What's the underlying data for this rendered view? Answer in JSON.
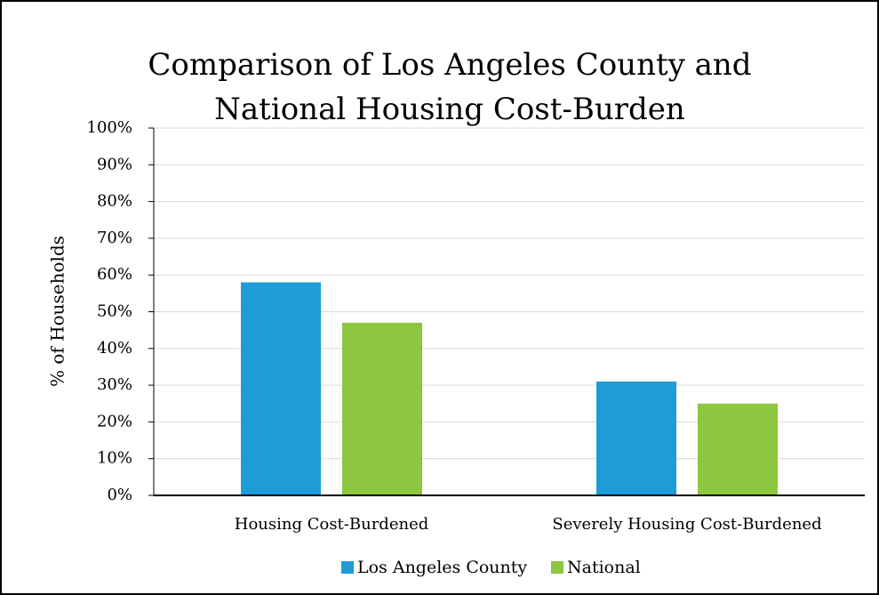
{
  "chart_data": {
    "type": "bar",
    "title": "Comparison of Los Angeles County and National Housing Cost-Burden",
    "y_label": "% of Households",
    "categories": [
      "Housing Cost-Burdened",
      "Severely Housing Cost-Burdened"
    ],
    "series": [
      {
        "name": "Los Angeles County",
        "color": "#1f9bd7",
        "values": [
          58,
          31
        ]
      },
      {
        "name": "National",
        "color": "#8dc63f",
        "values": [
          47,
          25
        ]
      }
    ],
    "ylim": [
      0,
      100
    ],
    "yticks": [
      {
        "value": 0,
        "label": "0%"
      },
      {
        "value": 10,
        "label": "10%"
      },
      {
        "value": 20,
        "label": "20%"
      },
      {
        "value": 30,
        "label": "30%"
      },
      {
        "value": 40,
        "label": "40%"
      },
      {
        "value": 50,
        "label": "50%"
      },
      {
        "value": 60,
        "label": "60%"
      },
      {
        "value": 70,
        "label": "70%"
      },
      {
        "value": 80,
        "label": "80%"
      },
      {
        "value": 90,
        "label": "90%"
      },
      {
        "value": 100,
        "label": "100%"
      }
    ],
    "grid": true,
    "legend": "bottom"
  }
}
